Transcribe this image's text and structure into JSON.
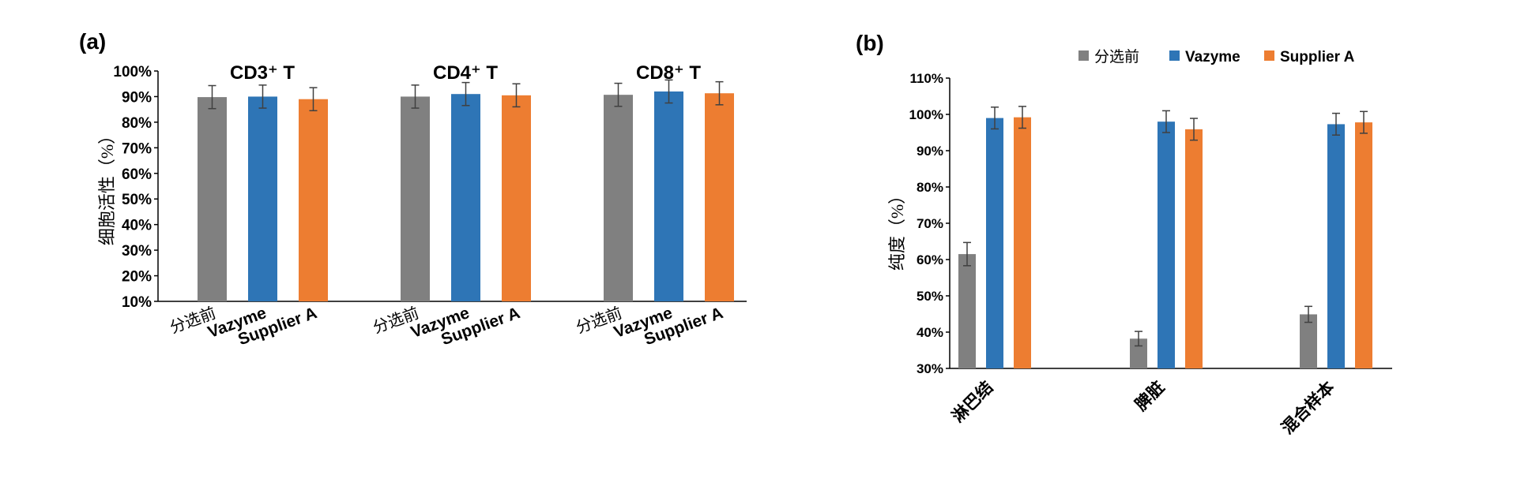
{
  "colors": {
    "pre": "#808080",
    "vazyme": "#2e75b6",
    "supplier": "#ed7d31",
    "axis": "#000000",
    "err": "#404040"
  },
  "chart_data": [
    {
      "type": "bar",
      "panel_label": "(a)",
      "ylabel": "细胞活性（%）",
      "ylim": [
        10,
        100
      ],
      "yticks": [
        "10%",
        "20%",
        "30%",
        "40%",
        "50%",
        "60%",
        "70%",
        "80%",
        "90%",
        "100%"
      ],
      "groups": [
        {
          "title": "CD3⁺ T",
          "categories": [
            "分选前",
            "Vazyme",
            "Supplier A"
          ],
          "values": [
            89.8,
            90.0,
            89.0
          ],
          "errors": [
            4.5,
            4.5,
            4.5
          ]
        },
        {
          "title": "CD4⁺ T",
          "categories": [
            "分选前",
            "Vazyme",
            "Supplier A"
          ],
          "values": [
            90.0,
            91.0,
            90.5
          ],
          "errors": [
            4.5,
            4.5,
            4.5
          ]
        },
        {
          "title": "CD8⁺ T",
          "categories": [
            "分选前",
            "Vazyme",
            "Supplier A"
          ],
          "values": [
            90.7,
            92.0,
            91.3
          ],
          "errors": [
            4.5,
            4.5,
            4.5
          ]
        }
      ]
    },
    {
      "type": "bar",
      "panel_label": "(b)",
      "ylabel": "纯度（%）",
      "ylim": [
        30,
        110
      ],
      "yticks": [
        "30%",
        "40%",
        "50%",
        "60%",
        "70%",
        "80%",
        "90%",
        "100%",
        "110%"
      ],
      "categories": [
        "淋巴结",
        "脾脏",
        "混合样本"
      ],
      "legend": [
        "分选前",
        "Vazyme",
        "Supplier A"
      ],
      "series": [
        {
          "name": "分选前",
          "values": [
            61.5,
            38.2,
            44.9
          ],
          "errors": [
            3.2,
            2.0,
            2.2
          ]
        },
        {
          "name": "Vazyme",
          "values": [
            99.0,
            98.0,
            97.3
          ],
          "errors": [
            3.0,
            3.0,
            3.0
          ]
        },
        {
          "name": "Supplier A",
          "values": [
            99.2,
            95.9,
            97.8
          ],
          "errors": [
            3.0,
            3.0,
            3.0
          ]
        }
      ]
    }
  ]
}
